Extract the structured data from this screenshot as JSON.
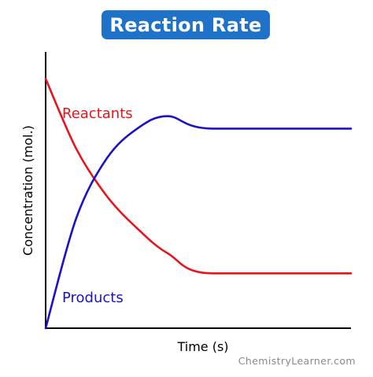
{
  "brand": {
    "badge_color": "#1e73c8",
    "credit": "ChemistryLearner.com"
  },
  "chart_data": {
    "type": "line",
    "title": "Reaction Rate",
    "xlabel": "Time (s)",
    "ylabel": "Concentration (mol.)",
    "xlim": [
      0,
      1
    ],
    "ylim": [
      0,
      1
    ],
    "grid": false,
    "legend": "inline labels",
    "series": [
      {
        "name": "Reactants",
        "color": "#e8141c",
        "x": [
          0,
          0.1,
          0.2,
          0.3,
          0.4,
          0.55,
          1
        ],
        "y": [
          1,
          0.72,
          0.53,
          0.4,
          0.3,
          0.22,
          0.22
        ]
      },
      {
        "name": "Products",
        "color": "#1a12c9",
        "x": [
          0,
          0.1,
          0.2,
          0.3,
          0.4,
          0.55,
          1
        ],
        "y": [
          0,
          0.44,
          0.68,
          0.8,
          0.85,
          0.8,
          0.8
        ]
      }
    ]
  }
}
